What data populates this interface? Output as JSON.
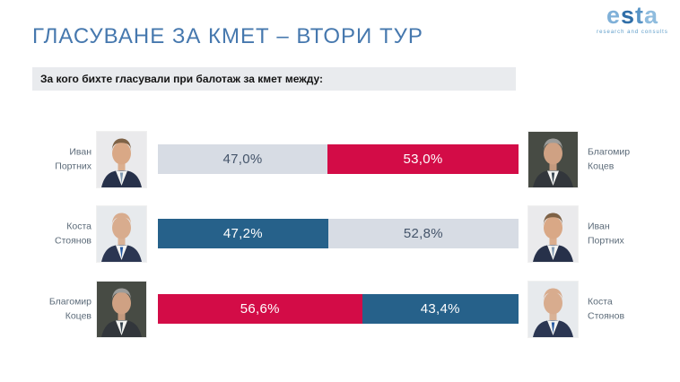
{
  "header": {
    "title": "ГЛАСУВАНЕ ЗА КМЕТ – ВТОРИ ТУР",
    "question": "За кого бихте гласували при балотаж за кмет между:"
  },
  "logo": {
    "letters": [
      "e",
      "s",
      "t",
      "a"
    ],
    "tagline": "research and consults"
  },
  "colors": {
    "title_blue": "#4678AE",
    "bar_gray": "#D7DCE4",
    "bar_red": "#D30C47",
    "bar_blue": "#26618A",
    "question_bg": "#E9EBEE",
    "name_text": "#5C6B79"
  },
  "chart_data": {
    "type": "bar",
    "subtype": "paired-horizontal-stacked-100pct",
    "title": "ГЛАСУВАНЕ ЗА КМЕТ – ВТОРИ ТУР",
    "question": "За кого бихте гласували при балотаж за кмет между:",
    "unit": "%",
    "xlim": [
      0,
      100
    ],
    "matchups": [
      {
        "left": {
          "first": "Иван",
          "last": "Портних",
          "value": 47.0,
          "label": "47,0%",
          "color": "#D7DCE4",
          "text_color": "#44546A"
        },
        "right": {
          "first": "Благомир",
          "last": "Коцев",
          "value": 53.0,
          "label": "53,0%",
          "color": "#D30C47",
          "text_color": "#FFFFFF"
        }
      },
      {
        "left": {
          "first": "Коста",
          "last": "Стоянов",
          "value": 47.2,
          "label": "47,2%",
          "color": "#26618A",
          "text_color": "#FFFFFF"
        },
        "right": {
          "first": "Иван",
          "last": "Портних",
          "value": 52.8,
          "label": "52,8%",
          "color": "#D7DCE4",
          "text_color": "#44546A"
        }
      },
      {
        "left": {
          "first": "Благомир",
          "last": "Коцев",
          "value": 56.6,
          "label": "56,6%",
          "color": "#D30C47",
          "text_color": "#FFFFFF"
        },
        "right": {
          "first": "Коста",
          "last": "Стоянов",
          "value": 43.4,
          "label": "43,4%",
          "color": "#26618A",
          "text_color": "#FFFFFF"
        }
      }
    ]
  }
}
